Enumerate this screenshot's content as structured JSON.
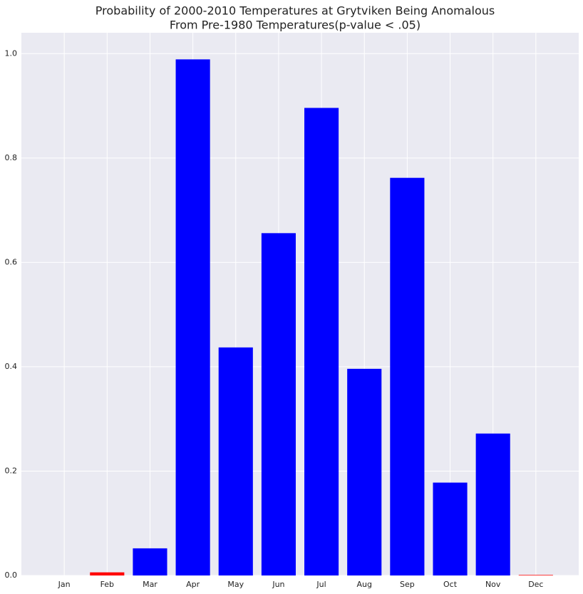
{
  "chart_data": {
    "type": "bar",
    "title": [
      "Probability of 2000-2010 Temperatures at Grytviken Being Anomalous",
      "From Pre-1980 Temperatures(p-value < .05)"
    ],
    "categories": [
      "Jan",
      "Feb",
      "Mar",
      "Apr",
      "May",
      "Jun",
      "Jul",
      "Aug",
      "Sep",
      "Oct",
      "Nov",
      "Dec"
    ],
    "values": [
      0,
      0.006,
      0.052,
      0.989,
      0.437,
      0.656,
      0.896,
      0.396,
      0.762,
      0.178,
      0.272,
      0.001
    ],
    "colors": [
      "#ff0000",
      "#ff0000",
      "#0000ff",
      "#0000ff",
      "#0000ff",
      "#0000ff",
      "#0000ff",
      "#0000ff",
      "#0000ff",
      "#0000ff",
      "#0000ff",
      "#ff0000"
    ],
    "ylim": [
      0,
      1.04
    ],
    "yticks": [
      {
        "value": 0,
        "label": "0.0"
      },
      0.2,
      0.4,
      0.6,
      0.8,
      {
        "value": 1,
        "label": "1.0"
      }
    ],
    "grid": true
  }
}
